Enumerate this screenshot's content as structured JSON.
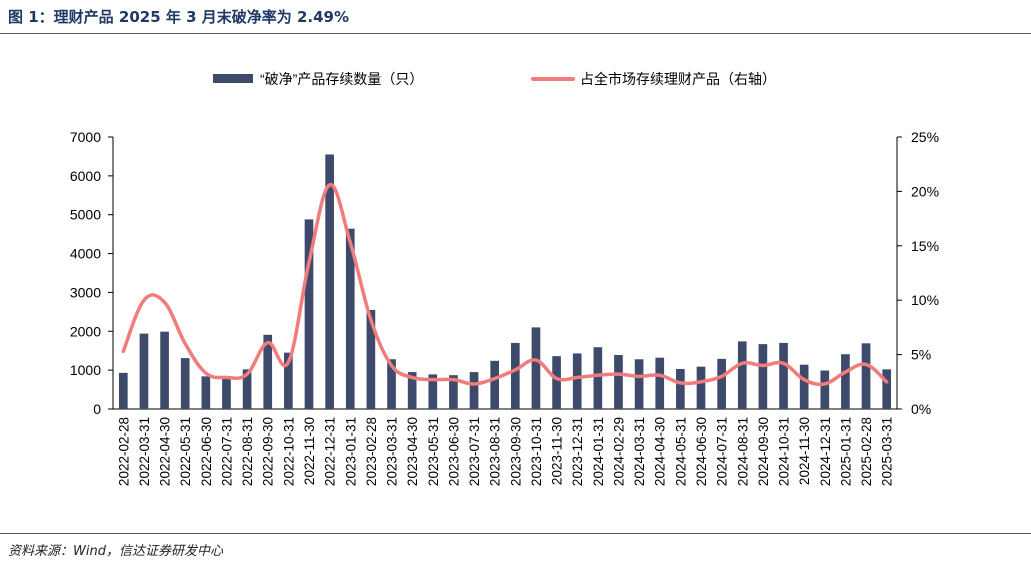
{
  "figure_title": "图 1：理财产品 2025 年 3 月末破净率为 2.49%",
  "source": "资料来源：Wind，信达证券研发中心",
  "colors": {
    "bar": "#3d4a6b",
    "line": "#f27c7c",
    "title": "#1f3864"
  },
  "chart_data": {
    "type": "bar",
    "title": "",
    "categories": [
      "2022-02-28",
      "2022-03-31",
      "2022-04-30",
      "2022-05-31",
      "2022-06-30",
      "2022-07-31",
      "2022-08-31",
      "2022-09-30",
      "2022-10-31",
      "2022-11-30",
      "2022-12-31",
      "2023-01-31",
      "2023-02-28",
      "2023-03-31",
      "2023-04-30",
      "2023-05-31",
      "2023-06-30",
      "2023-07-31",
      "2023-08-31",
      "2023-09-30",
      "2023-10-31",
      "2023-11-30",
      "2023-12-31",
      "2024-01-31",
      "2024-02-29",
      "2024-03-31",
      "2024-04-30",
      "2024-05-31",
      "2024-06-30",
      "2024-07-31",
      "2024-08-31",
      "2024-09-30",
      "2024-10-31",
      "2024-11-30",
      "2024-12-31",
      "2025-01-31",
      "2025-02-28",
      "2025-03-31"
    ],
    "series": [
      {
        "name": "“破净”产品存续数量（只）",
        "type": "bar",
        "axis": "left",
        "values": [
          930,
          1940,
          1990,
          1310,
          840,
          810,
          1020,
          1910,
          1450,
          4880,
          6550,
          4640,
          2550,
          1280,
          950,
          890,
          870,
          950,
          1240,
          1700,
          2100,
          1360,
          1430,
          1590,
          1390,
          1280,
          1320,
          1030,
          1090,
          1290,
          1740,
          1670,
          1700,
          1140,
          990,
          1410,
          1690,
          1020
        ]
      },
      {
        "name": "占全市场存续理财产品（右轴）",
        "type": "line",
        "axis": "right",
        "values": [
          5.3,
          10.0,
          9.8,
          6.0,
          3.3,
          2.9,
          3.2,
          6.1,
          4.3,
          13.5,
          20.6,
          15.3,
          8.2,
          4.0,
          2.9,
          2.7,
          2.7,
          2.3,
          2.8,
          3.6,
          4.5,
          2.8,
          2.9,
          3.1,
          3.2,
          3.0,
          3.1,
          2.4,
          2.5,
          3.0,
          4.2,
          4.0,
          4.2,
          2.7,
          2.3,
          3.4,
          4.1,
          2.49
        ]
      }
    ],
    "y_left": {
      "min": 0,
      "max": 7000,
      "ticks": [
        "0",
        "1000",
        "2000",
        "3000",
        "4000",
        "5000",
        "6000",
        "7000"
      ]
    },
    "y_right": {
      "min": 0,
      "max": 25,
      "ticks": [
        "0%",
        "5%",
        "10%",
        "15%",
        "20%",
        "25%"
      ]
    },
    "xlabel": "",
    "ylabel": "",
    "grid": false,
    "legend_position": "top"
  }
}
